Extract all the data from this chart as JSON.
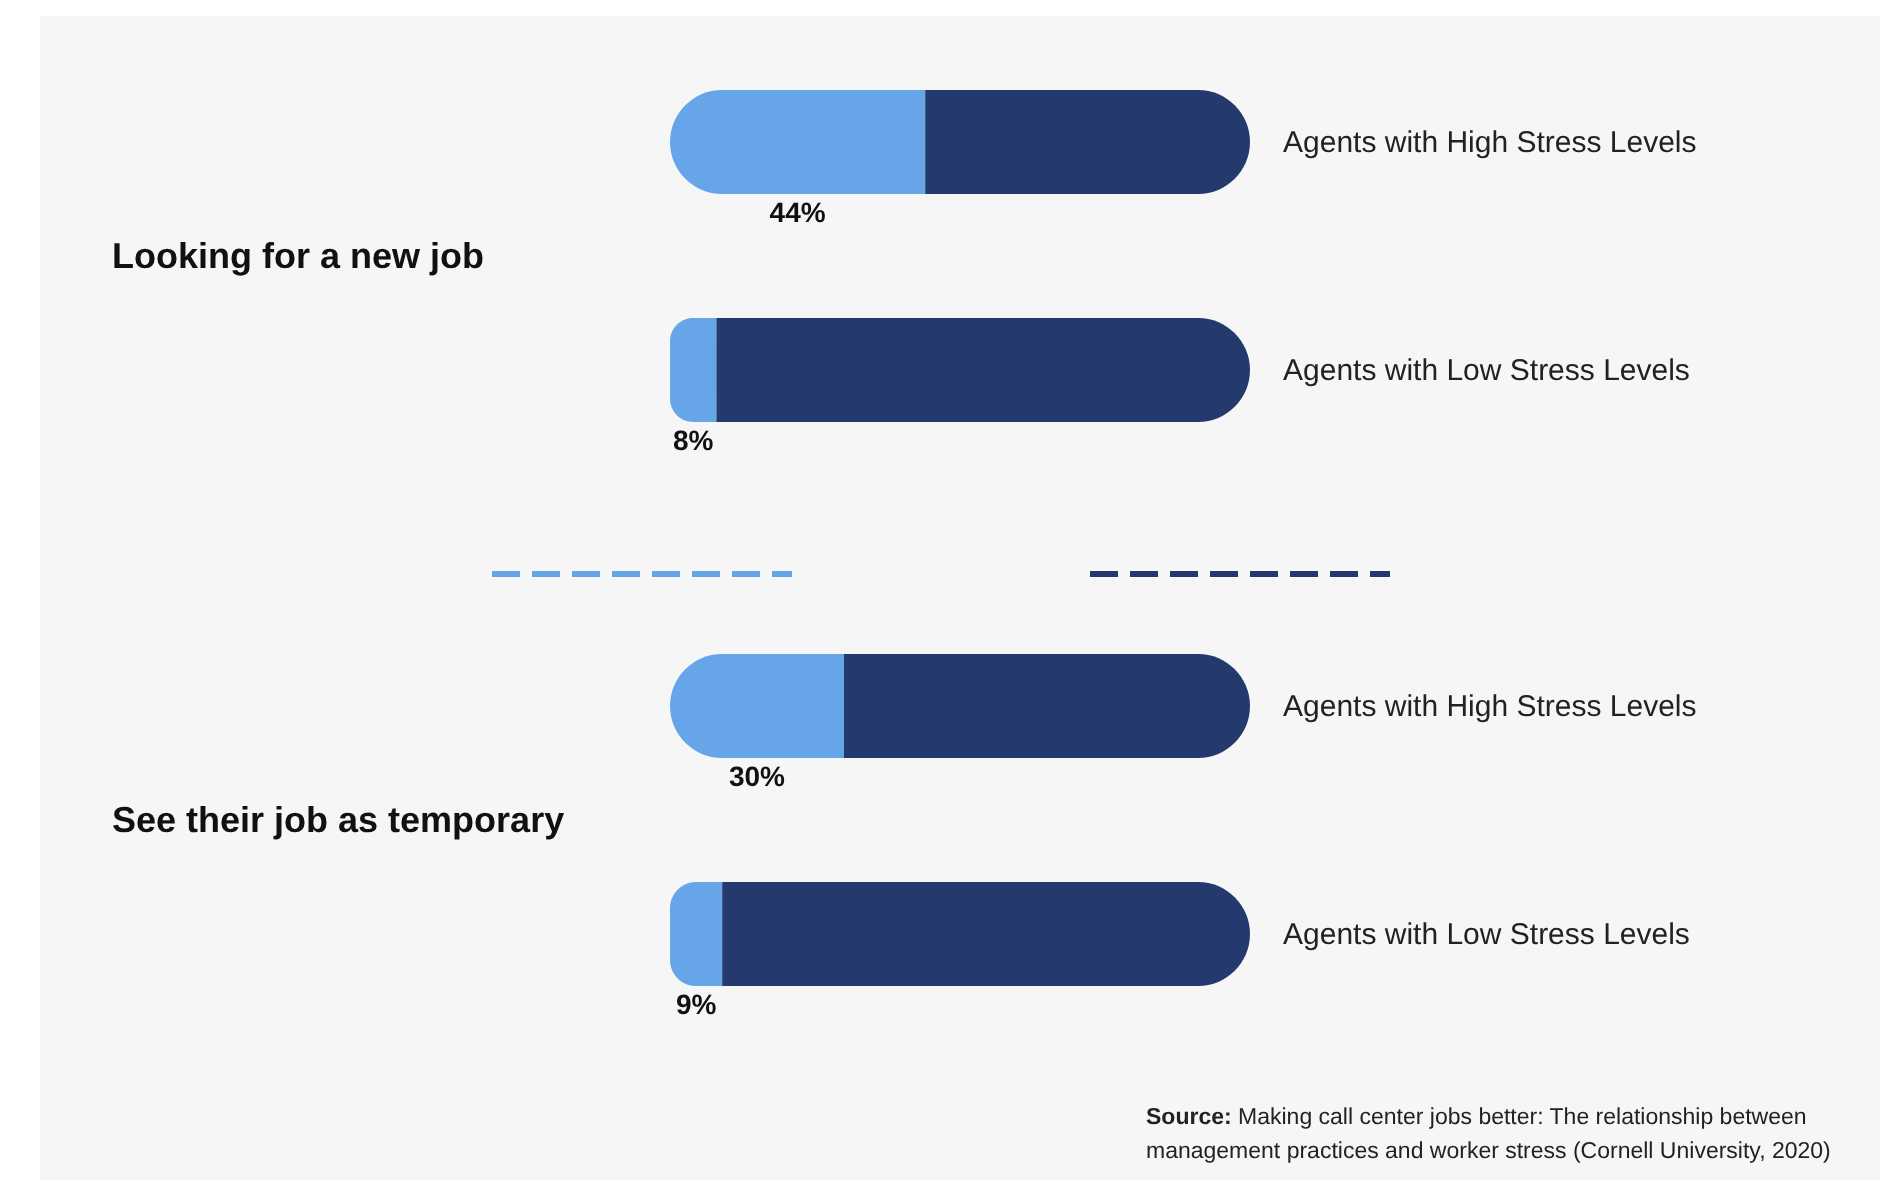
{
  "chart_data": [
    {
      "type": "bar",
      "orientation": "horizontal",
      "stacked": true,
      "title": "Looking for a new job",
      "categories": [
        "Agents with High Stress Levels",
        "Agents with Low Stress Levels"
      ],
      "xlim": [
        0,
        100
      ],
      "tick_labels": "y",
      "series": [
        {
          "color": "#66a6e8",
          "values": [
            44,
            8
          ],
          "value_labels": [
            "44%",
            "8%"
          ]
        },
        {
          "color": "#243a6e",
          "values": [
            56,
            92
          ]
        }
      ]
    },
    {
      "type": "bar",
      "orientation": "horizontal",
      "stacked": true,
      "title": "See their job as temporary",
      "categories": [
        "Agents with High Stress Levels",
        "Agents with Low Stress Levels"
      ],
      "xlim": [
        0,
        100
      ],
      "tick_labels": "y",
      "series": [
        {
          "color": "#66a6e8",
          "values": [
            30,
            9
          ],
          "value_labels": [
            "30%",
            "9%"
          ]
        },
        {
          "color": "#243a6e",
          "values": [
            70,
            91
          ]
        }
      ],
      "annotations": [
        "Source: Making call center jobs better: The relationship between management practices and worker stress (Cornell University, 2020)"
      ]
    }
  ]
}
